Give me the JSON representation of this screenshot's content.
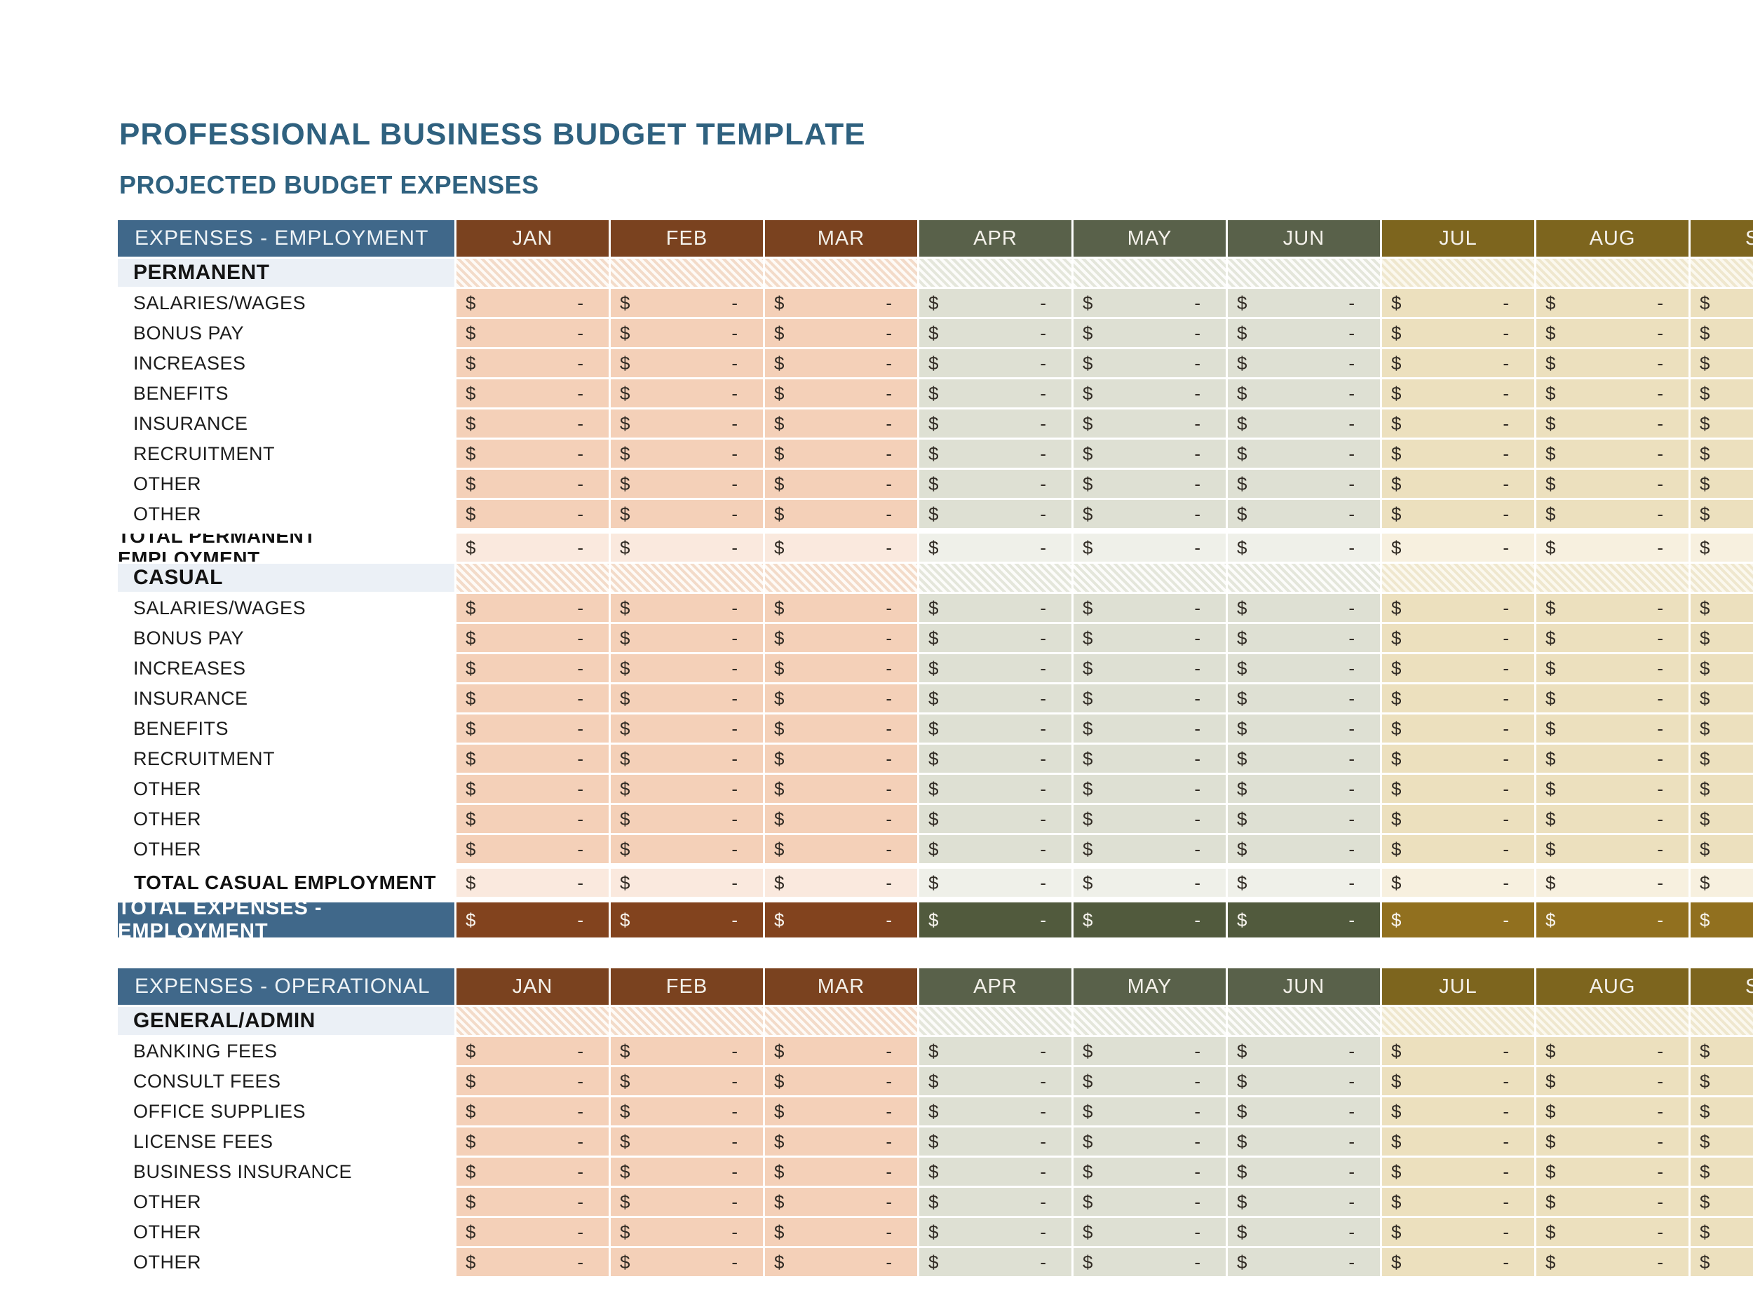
{
  "page": {
    "title": "PROFESSIONAL BUSINESS BUDGET TEMPLATE",
    "subtitle": "PROJECTED BUDGET EXPENSES"
  },
  "months": [
    "JAN",
    "FEB",
    "MAR",
    "APR",
    "MAY",
    "JUN",
    "JUL",
    "AUG",
    "SEP"
  ],
  "month_groups": [
    0,
    0,
    0,
    1,
    1,
    1,
    2,
    2,
    2
  ],
  "cell": {
    "currency": "$",
    "empty": "-"
  },
  "colors": {
    "title_blue": "#2F617F",
    "header_blue": "#40688A",
    "section_bg": "#EBF0F6",
    "group0": {
      "dark": "#7A421F",
      "dark2": "#82431E",
      "cell": "#F4D0B8",
      "light": "#FAE9DE",
      "hatch_a": "#F3DBC9",
      "hatch_b": "#FEFAF6"
    },
    "group1": {
      "dark": "#59614A",
      "dark2": "#515A3D",
      "cell": "#DEE0D3",
      "light": "#EFF0E9",
      "hatch_a": "#E4E6DB",
      "hatch_b": "#FCFCFA"
    },
    "group2": {
      "dark": "#7D651E",
      "dark2": "#91701F",
      "cell": "#ECE0BE",
      "light": "#F7F0DF",
      "hatch_a": "#EFE7CE",
      "hatch_b": "#FBF8EE"
    }
  },
  "tables": [
    {
      "id": "employment",
      "header": "EXPENSES - EMPLOYMENT",
      "rows": [
        {
          "type": "section",
          "label": "PERMANENT"
        },
        {
          "type": "data",
          "label": "SALARIES/WAGES"
        },
        {
          "type": "data",
          "label": "BONUS PAY"
        },
        {
          "type": "data",
          "label": "INCREASES"
        },
        {
          "type": "data",
          "label": "BENEFITS"
        },
        {
          "type": "data",
          "label": "INSURANCE"
        },
        {
          "type": "data",
          "label": "RECRUITMENT"
        },
        {
          "type": "data",
          "label": "OTHER"
        },
        {
          "type": "data",
          "label": "OTHER"
        },
        {
          "type": "total",
          "label": "TOTAL PERMANENT EMPLOYMENT"
        },
        {
          "type": "section",
          "label": "CASUAL"
        },
        {
          "type": "data",
          "label": "SALARIES/WAGES"
        },
        {
          "type": "data",
          "label": "BONUS PAY"
        },
        {
          "type": "data",
          "label": "INCREASES"
        },
        {
          "type": "data",
          "label": "INSURANCE"
        },
        {
          "type": "data",
          "label": "BENEFITS"
        },
        {
          "type": "data",
          "label": "RECRUITMENT"
        },
        {
          "type": "data",
          "label": "OTHER"
        },
        {
          "type": "data",
          "label": "OTHER"
        },
        {
          "type": "data",
          "label": "OTHER"
        },
        {
          "type": "total",
          "label": "TOTAL CASUAL EMPLOYMENT"
        },
        {
          "type": "grand",
          "label": "TOTAL EXPENSES - EMPLOYMENT"
        }
      ]
    },
    {
      "id": "operational",
      "header": "EXPENSES - OPERATIONAL",
      "rows": [
        {
          "type": "section",
          "label": "GENERAL/ADMIN"
        },
        {
          "type": "data",
          "label": "BANKING FEES"
        },
        {
          "type": "data",
          "label": "CONSULT FEES"
        },
        {
          "type": "data",
          "label": "OFFICE SUPPLIES"
        },
        {
          "type": "data",
          "label": "LICENSE FEES"
        },
        {
          "type": "data",
          "label": "BUSINESS INSURANCE"
        },
        {
          "type": "data",
          "label": "OTHER"
        },
        {
          "type": "data",
          "label": "OTHER"
        },
        {
          "type": "data",
          "label": "OTHER"
        }
      ]
    }
  ]
}
